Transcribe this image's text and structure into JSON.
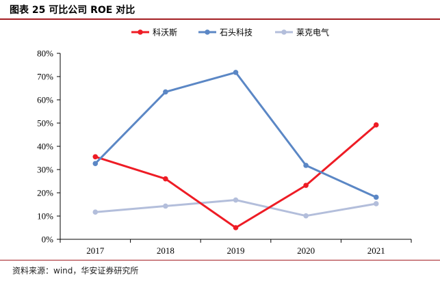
{
  "figure": {
    "title": "图表 25  可比公司 ROE 对比",
    "source": "资料来源：wind，华安证券研究所"
  },
  "colors": {
    "rule": "#a31d22"
  },
  "chart_data": {
    "type": "line",
    "title": "",
    "xlabel": "",
    "ylabel": "",
    "x": [
      "2017",
      "2018",
      "2019",
      "2020",
      "2021"
    ],
    "ylim": [
      0,
      80
    ],
    "yticks": [
      0,
      10,
      20,
      30,
      40,
      50,
      60,
      70,
      80
    ],
    "ytick_labels": [
      "0%",
      "10%",
      "20%",
      "30%",
      "40%",
      "50%",
      "60%",
      "70%",
      "80%"
    ],
    "grid": false,
    "legend_position": "top",
    "series": [
      {
        "name": "科沃斯",
        "color": "#ee1c25",
        "values": [
          35.5,
          26.0,
          5.0,
          23.2,
          49.2
        ]
      },
      {
        "name": "石头科技",
        "color": "#5b87c5",
        "values": [
          32.6,
          63.4,
          71.8,
          31.8,
          18.1
        ]
      },
      {
        "name": "莱克电气",
        "color": "#b3bedb",
        "values": [
          11.7,
          14.3,
          16.9,
          10.1,
          15.3
        ]
      }
    ]
  }
}
